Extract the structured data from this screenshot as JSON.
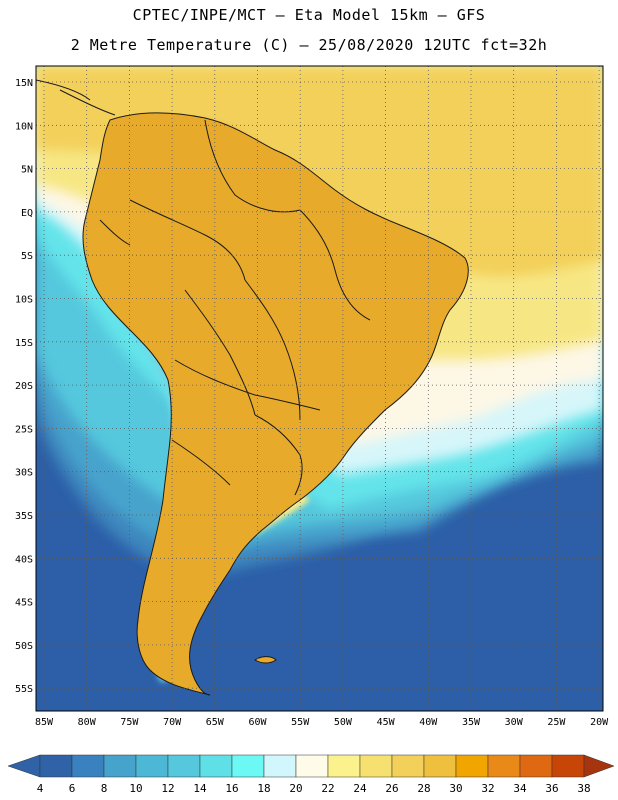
{
  "header": {
    "line1": "CPTEC/INPE/MCT –  Eta Model 15km – GFS",
    "line2": "2 Metre Temperature (C) – 25/08/2020 12UTC fct=32h"
  },
  "map": {
    "lat_labels": [
      "15N",
      "10N",
      "5N",
      "EQ",
      "5S",
      "10S",
      "15S",
      "20S",
      "25S",
      "30S",
      "35S",
      "40S",
      "45S",
      "50S",
      "55S"
    ],
    "lon_labels": [
      "85W",
      "80W",
      "75W",
      "70W",
      "65W",
      "60W",
      "55W",
      "50W",
      "45W",
      "40W",
      "35W",
      "30W",
      "25W",
      "20W"
    ]
  },
  "colorbar": {
    "labels": [
      "4",
      "6",
      "8",
      "10",
      "12",
      "14",
      "16",
      "18",
      "20",
      "22",
      "24",
      "26",
      "28",
      "30",
      "32",
      "34",
      "36",
      "38"
    ],
    "colors": [
      "#2f62a7",
      "#3a82bf",
      "#45a3cc",
      "#4db7d6",
      "#55c8dd",
      "#5fe0e6",
      "#6cf8f5",
      "#d1f6fb",
      "#fefbe9",
      "#fbf18d",
      "#f6e170",
      "#f3d05a",
      "#efc03e",
      "#f1a500",
      "#e98a18",
      "#df6812",
      "#c74607",
      "#a6340e"
    ]
  },
  "icons": {
    "arrow_left": "triangle-left-icon",
    "arrow_right": "triangle-right-icon"
  }
}
